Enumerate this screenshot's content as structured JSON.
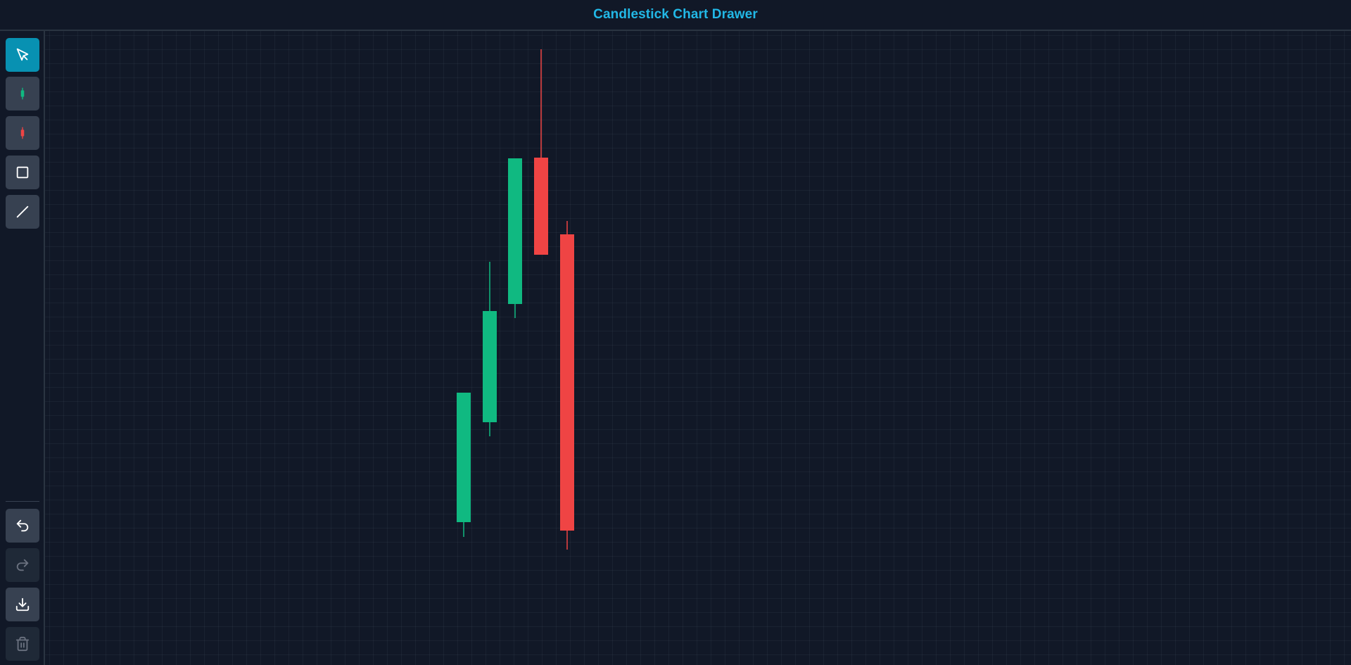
{
  "header": {
    "title": "Candlestick Chart Drawer"
  },
  "toolbar": {
    "tools": [
      {
        "name": "select-tool-button",
        "icon": "cursor-arrow-icon",
        "state": "active"
      },
      {
        "name": "bullish-candle-tool-button",
        "icon": "green-candle-icon",
        "state": "normal"
      },
      {
        "name": "bearish-candle-tool-button",
        "icon": "red-candle-icon",
        "state": "normal"
      },
      {
        "name": "rectangle-tool-button",
        "icon": "square-icon",
        "state": "normal"
      },
      {
        "name": "line-tool-button",
        "icon": "diagonal-line-icon",
        "state": "normal"
      }
    ],
    "actions": [
      {
        "name": "undo-button",
        "icon": "undo-arrow-icon",
        "state": "enabled"
      },
      {
        "name": "redo-button",
        "icon": "redo-arrow-icon",
        "state": "disabled"
      },
      {
        "name": "download-button",
        "icon": "download-icon",
        "state": "enabled"
      },
      {
        "name": "clear-button",
        "icon": "trash-icon",
        "state": "disabled"
      }
    ]
  },
  "colors": {
    "background": "#111827",
    "accent": "#0891b2",
    "title": "#22b8e6",
    "bullish": "#10b981",
    "bearish": "#ef4444",
    "button": "#374151",
    "button_disabled": "#1f2937"
  },
  "chart_data": {
    "type": "candlestick",
    "title": "",
    "xlabel": "",
    "ylabel": "",
    "grid": true,
    "candles": [
      {
        "index": 1,
        "direction": "up",
        "open": 203,
        "close": 387,
        "high": 387,
        "low": 182
      },
      {
        "index": 2,
        "direction": "up",
        "open": 345,
        "close": 503,
        "high": 573,
        "low": 325
      },
      {
        "index": 3,
        "direction": "up",
        "open": 513,
        "close": 720,
        "high": 720,
        "low": 493
      },
      {
        "index": 4,
        "direction": "down",
        "open": 721,
        "close": 583,
        "high": 875,
        "low": 583
      },
      {
        "index": 5,
        "direction": "down",
        "open": 612,
        "close": 191,
        "high": 631,
        "low": 164
      }
    ],
    "ylim": [
      0,
      945
    ]
  }
}
